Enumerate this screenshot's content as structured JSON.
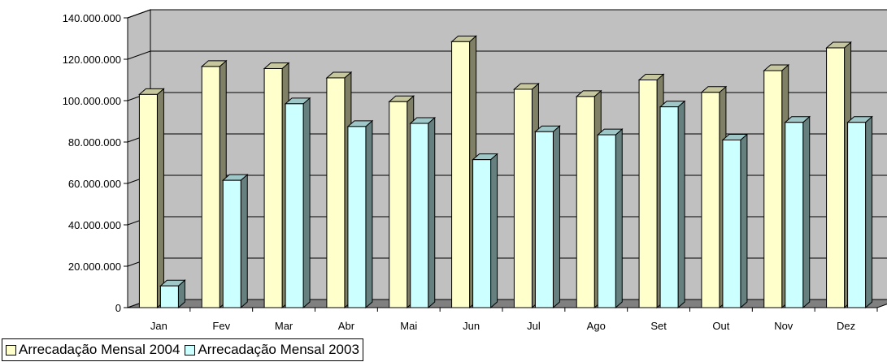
{
  "chart_data": {
    "type": "bar",
    "categories": [
      "Jan",
      "Fev",
      "Mar",
      "Abr",
      "Mai",
      "Jun",
      "Jul",
      "Ago",
      "Set",
      "Out",
      "Nov",
      "Dez"
    ],
    "series": [
      {
        "name": "Arrecadação Mensal 2004",
        "color": "#FFFFCC",
        "values": [
          103000000,
          116500000,
          115500000,
          111000000,
          99500000,
          128500000,
          105500000,
          102000000,
          110000000,
          104000000,
          114500000,
          125500000
        ]
      },
      {
        "name": "Arrecadação Mensal 2003",
        "color": "#CCFFFF",
        "values": [
          10500000,
          61500000,
          98500000,
          87500000,
          89000000,
          71500000,
          85000000,
          83500000,
          97000000,
          81000000,
          89500000,
          89500000
        ]
      }
    ],
    "yticks": [
      "0",
      "20.000.000",
      "40.000.000",
      "60.000.000",
      "80.000.000",
      "100.000.000",
      "120.000.000",
      "140.000.000"
    ],
    "ylim": [
      0,
      140000000
    ],
    "grid": true,
    "legend_position": "bottom-left",
    "three_d": true,
    "wall_color": "#C0C0C0",
    "floor_color": "#808080"
  }
}
